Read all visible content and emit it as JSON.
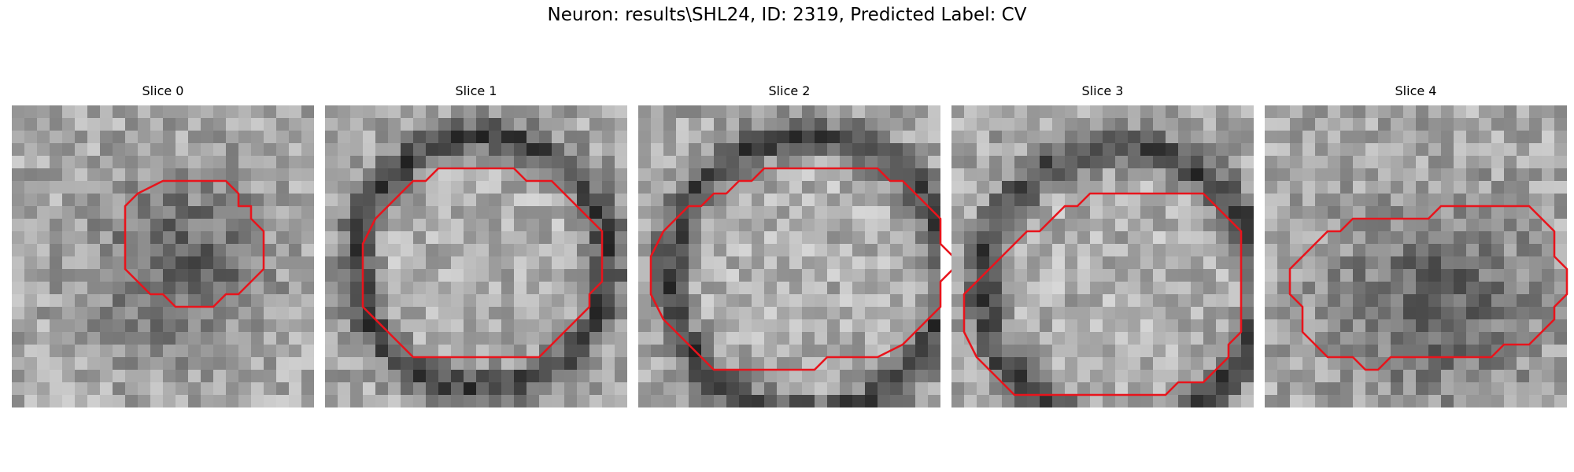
{
  "figure": {
    "title": "Neuron: results\\SHL24, ID: 2319, Predicted Label: CV"
  },
  "panels": [
    {
      "title": "Slice 0",
      "contour": [
        [
          14,
          6
        ],
        [
          17,
          6
        ],
        [
          18,
          7
        ],
        [
          18,
          8
        ],
        [
          19,
          8
        ],
        [
          19,
          9
        ],
        [
          20,
          10
        ],
        [
          20,
          13
        ],
        [
          19,
          14
        ],
        [
          19,
          14
        ],
        [
          18,
          15
        ],
        [
          17,
          15
        ],
        [
          16,
          16
        ],
        [
          13,
          16
        ],
        [
          12,
          15
        ],
        [
          11,
          15
        ],
        [
          10,
          14
        ],
        [
          9,
          13
        ],
        [
          9,
          8
        ],
        [
          10,
          7
        ],
        [
          12,
          6
        ]
      ],
      "seed": 11,
      "darkRing": false,
      "center": [
        13,
        12
      ],
      "radius": 7
    },
    {
      "title": "Slice 1",
      "contour": [
        [
          11,
          5
        ],
        [
          15,
          5
        ],
        [
          16,
          6
        ],
        [
          18,
          6
        ],
        [
          19,
          7
        ],
        [
          20,
          8
        ],
        [
          21,
          9
        ],
        [
          22,
          10
        ],
        [
          22,
          14
        ],
        [
          21,
          15
        ],
        [
          21,
          16
        ],
        [
          20,
          17
        ],
        [
          19,
          18
        ],
        [
          18,
          19
        ],
        [
          17,
          20
        ],
        [
          7,
          20
        ],
        [
          6,
          19
        ],
        [
          5,
          18
        ],
        [
          4,
          17
        ],
        [
          3,
          16
        ],
        [
          3,
          11
        ],
        [
          4,
          9
        ],
        [
          5,
          8
        ],
        [
          6,
          7
        ],
        [
          7,
          6
        ],
        [
          8,
          6
        ],
        [
          9,
          5
        ]
      ],
      "seed": 23,
      "darkRing": true,
      "center": [
        12,
        12
      ],
      "radius": 10
    },
    {
      "title": "Slice 2",
      "contour": [
        [
          11,
          5
        ],
        [
          19,
          5
        ],
        [
          20,
          6
        ],
        [
          21,
          6
        ],
        [
          22,
          7
        ],
        [
          23,
          8
        ],
        [
          24,
          9
        ],
        [
          24,
          11
        ],
        [
          25,
          12
        ],
        [
          25,
          13
        ],
        [
          24,
          14
        ],
        [
          24,
          16
        ],
        [
          23,
          17
        ],
        [
          22,
          18
        ],
        [
          21,
          19
        ],
        [
          19,
          20
        ],
        [
          15,
          20
        ],
        [
          14,
          21
        ],
        [
          6,
          21
        ],
        [
          5,
          20
        ],
        [
          3,
          18
        ],
        [
          2,
          17
        ],
        [
          1,
          15
        ],
        [
          1,
          12
        ],
        [
          2,
          10
        ],
        [
          3,
          9
        ],
        [
          4,
          8
        ],
        [
          5,
          8
        ],
        [
          6,
          7
        ],
        [
          7,
          7
        ],
        [
          8,
          6
        ],
        [
          9,
          6
        ],
        [
          10,
          5
        ]
      ],
      "seed": 37,
      "darkRing": true,
      "center": [
        13,
        13
      ],
      "radius": 11
    },
    {
      "title": "Slice 3",
      "contour": [
        [
          11,
          7
        ],
        [
          20,
          7
        ],
        [
          21,
          8
        ],
        [
          22,
          9
        ],
        [
          23,
          10
        ],
        [
          23,
          18
        ],
        [
          22,
          19
        ],
        [
          22,
          20
        ],
        [
          21,
          21
        ],
        [
          20,
          22
        ],
        [
          18,
          22
        ],
        [
          17,
          23
        ],
        [
          5,
          23
        ],
        [
          4,
          22
        ],
        [
          3,
          21
        ],
        [
          2,
          20
        ],
        [
          1,
          18
        ],
        [
          1,
          15
        ],
        [
          2,
          14
        ],
        [
          3,
          13
        ],
        [
          4,
          12
        ],
        [
          5,
          11
        ],
        [
          6,
          10
        ],
        [
          7,
          10
        ],
        [
          8,
          9
        ],
        [
          9,
          8
        ],
        [
          10,
          8
        ]
      ],
      "seed": 51,
      "darkRing": true,
      "center": [
        13,
        14
      ],
      "radius": 11
    },
    {
      "title": "Slice 4",
      "contour": [
        [
          16,
          8
        ],
        [
          21,
          8
        ],
        [
          22,
          9
        ],
        [
          23,
          10
        ],
        [
          23,
          12
        ],
        [
          24,
          13
        ],
        [
          24,
          15
        ],
        [
          23,
          16
        ],
        [
          23,
          17
        ],
        [
          22,
          18
        ],
        [
          21,
          19
        ],
        [
          19,
          19
        ],
        [
          18,
          20
        ],
        [
          10,
          20
        ],
        [
          9,
          21
        ],
        [
          8,
          21
        ],
        [
          7,
          20
        ],
        [
          5,
          20
        ],
        [
          4,
          19
        ],
        [
          3,
          18
        ],
        [
          3,
          16
        ],
        [
          2,
          15
        ],
        [
          2,
          13
        ],
        [
          3,
          12
        ],
        [
          4,
          11
        ],
        [
          5,
          10
        ],
        [
          6,
          10
        ],
        [
          7,
          9
        ],
        [
          13,
          9
        ],
        [
          14,
          8
        ]
      ],
      "seed": 67,
      "darkRing": false,
      "center": [
        13,
        15
      ],
      "radius": 8
    }
  ],
  "style": {
    "contour_color": "#e8141c"
  }
}
